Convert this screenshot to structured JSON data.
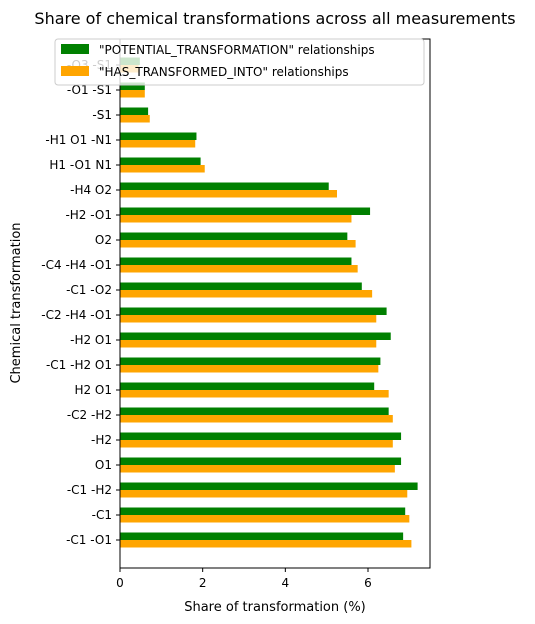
{
  "chart_data": {
    "type": "bar",
    "orientation": "horizontal",
    "title": "Share of chemical transformations across all measurements",
    "xlabel": "Share of transformation (%)",
    "ylabel": "Chemical transformation",
    "xlim": [
      0,
      7.5
    ],
    "xticks": [
      0,
      2,
      4,
      6
    ],
    "grid": false,
    "legend_position": "top",
    "categories": [
      "-C1 -O1",
      "-C1",
      "-C1 -H2",
      "O1",
      "-H2",
      "-C2 -H2",
      "H2 O1",
      "-C1 -H2 O1",
      "-H2 O1",
      "-C2 -H4 -O1",
      "-C1 -O2",
      "-C4 -H4 -O1",
      "O2",
      "-H2 -O1",
      "-H4 O2",
      "H1 -O1 N1",
      "-H1 O1 -N1",
      "-S1",
      "-O1 -S1",
      "-O3 -S1"
    ],
    "series": [
      {
        "name": "\"POTENTIAL_TRANSFORMATION\" relationships",
        "color": "#008000",
        "values": [
          6.85,
          6.9,
          7.2,
          6.8,
          6.8,
          6.5,
          6.15,
          6.3,
          6.55,
          6.45,
          5.85,
          5.6,
          5.5,
          6.05,
          5.05,
          1.95,
          1.85,
          0.68,
          0.6,
          0.48
        ]
      },
      {
        "name": "\"HAS_TRANSFORMED_INTO\" relationships",
        "color": "#ffa500",
        "values": [
          7.05,
          7.0,
          6.95,
          6.65,
          6.6,
          6.6,
          6.5,
          6.25,
          6.2,
          6.2,
          6.1,
          5.75,
          5.7,
          5.6,
          5.25,
          2.05,
          1.82,
          0.72,
          0.6,
          0.45
        ]
      }
    ]
  }
}
